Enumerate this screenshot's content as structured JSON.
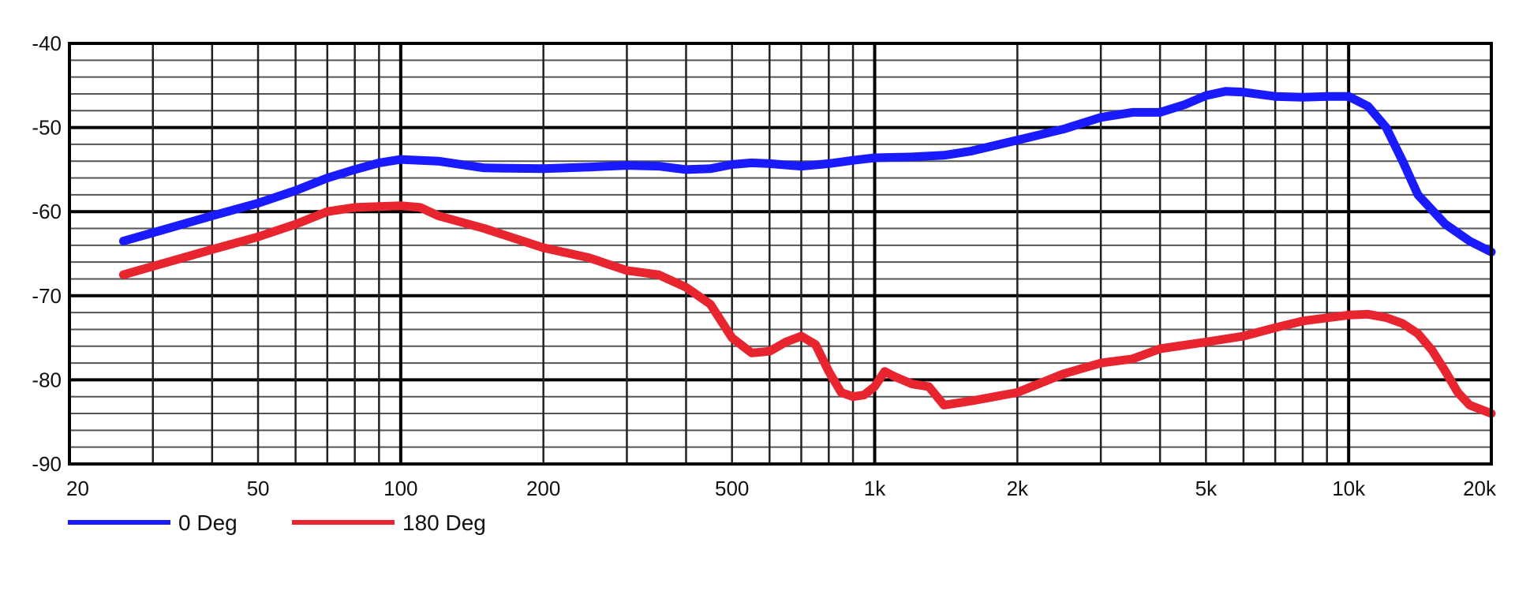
{
  "chart_data": {
    "type": "line",
    "title": "",
    "xlabel": "",
    "ylabel": "",
    "x_scale": "log",
    "xlim": [
      20,
      20000
    ],
    "ylim": [
      -90,
      -40
    ],
    "grid": true,
    "legend_position": "bottom-left",
    "x_tick_labels": [
      {
        "value": 20,
        "label": "20"
      },
      {
        "value": 50,
        "label": "50"
      },
      {
        "value": 100,
        "label": "100"
      },
      {
        "value": 200,
        "label": "200"
      },
      {
        "value": 500,
        "label": "500"
      },
      {
        "value": 1000,
        "label": "1k"
      },
      {
        "value": 2000,
        "label": "2k"
      },
      {
        "value": 5000,
        "label": "5k"
      },
      {
        "value": 10000,
        "label": "10k"
      },
      {
        "value": 20000,
        "label": "20k"
      }
    ],
    "y_tick_labels": [
      {
        "value": -40,
        "label": "-40"
      },
      {
        "value": -50,
        "label": "-50"
      },
      {
        "value": -60,
        "label": "-60"
      },
      {
        "value": -70,
        "label": "-70"
      },
      {
        "value": -80,
        "label": "-80"
      },
      {
        "value": -90,
        "label": "-90"
      }
    ],
    "series": [
      {
        "name": "0 Deg",
        "color": "#1a1aff",
        "points": [
          [
            26,
            -63.5
          ],
          [
            30,
            -62.5
          ],
          [
            40,
            -60.5
          ],
          [
            50,
            -59.0
          ],
          [
            60,
            -57.5
          ],
          [
            70,
            -56.0
          ],
          [
            80,
            -55.0
          ],
          [
            90,
            -54.2
          ],
          [
            100,
            -53.8
          ],
          [
            120,
            -54.0
          ],
          [
            150,
            -54.8
          ],
          [
            200,
            -54.9
          ],
          [
            250,
            -54.7
          ],
          [
            300,
            -54.5
          ],
          [
            350,
            -54.6
          ],
          [
            400,
            -55.0
          ],
          [
            450,
            -54.9
          ],
          [
            500,
            -54.4
          ],
          [
            550,
            -54.2
          ],
          [
            600,
            -54.3
          ],
          [
            700,
            -54.6
          ],
          [
            800,
            -54.3
          ],
          [
            900,
            -53.9
          ],
          [
            1000,
            -53.6
          ],
          [
            1200,
            -53.5
          ],
          [
            1400,
            -53.3
          ],
          [
            1600,
            -52.8
          ],
          [
            2000,
            -51.5
          ],
          [
            2500,
            -50.2
          ],
          [
            3000,
            -48.8
          ],
          [
            3500,
            -48.2
          ],
          [
            4000,
            -48.2
          ],
          [
            4500,
            -47.3
          ],
          [
            5000,
            -46.2
          ],
          [
            5500,
            -45.7
          ],
          [
            6000,
            -45.8
          ],
          [
            7000,
            -46.3
          ],
          [
            8000,
            -46.4
          ],
          [
            9000,
            -46.3
          ],
          [
            10000,
            -46.3
          ],
          [
            11000,
            -47.5
          ],
          [
            12000,
            -50.0
          ],
          [
            13000,
            -54.0
          ],
          [
            14000,
            -58.0
          ],
          [
            16000,
            -61.5
          ],
          [
            18000,
            -63.5
          ],
          [
            20000,
            -64.8
          ]
        ]
      },
      {
        "name": "180 Deg",
        "color": "#e8242f",
        "points": [
          [
            26,
            -67.5
          ],
          [
            30,
            -66.5
          ],
          [
            40,
            -64.5
          ],
          [
            50,
            -63.0
          ],
          [
            60,
            -61.5
          ],
          [
            70,
            -60.0
          ],
          [
            80,
            -59.5
          ],
          [
            90,
            -59.4
          ],
          [
            100,
            -59.3
          ],
          [
            110,
            -59.5
          ],
          [
            120,
            -60.5
          ],
          [
            150,
            -62.0
          ],
          [
            200,
            -64.3
          ],
          [
            250,
            -65.5
          ],
          [
            300,
            -67.0
          ],
          [
            350,
            -67.5
          ],
          [
            400,
            -69.0
          ],
          [
            450,
            -71.0
          ],
          [
            500,
            -75.0
          ],
          [
            550,
            -76.8
          ],
          [
            600,
            -76.6
          ],
          [
            650,
            -75.5
          ],
          [
            700,
            -74.8
          ],
          [
            750,
            -75.8
          ],
          [
            800,
            -79.0
          ],
          [
            850,
            -81.5
          ],
          [
            900,
            -82.0
          ],
          [
            950,
            -81.8
          ],
          [
            1000,
            -80.8
          ],
          [
            1050,
            -79.0
          ],
          [
            1100,
            -79.6
          ],
          [
            1200,
            -80.5
          ],
          [
            1300,
            -80.8
          ],
          [
            1400,
            -83.0
          ],
          [
            1600,
            -82.5
          ],
          [
            2000,
            -81.5
          ],
          [
            2500,
            -79.3
          ],
          [
            3000,
            -78.0
          ],
          [
            3500,
            -77.5
          ],
          [
            4000,
            -76.3
          ],
          [
            5000,
            -75.5
          ],
          [
            6000,
            -74.8
          ],
          [
            7000,
            -73.8
          ],
          [
            8000,
            -73.0
          ],
          [
            10000,
            -72.3
          ],
          [
            11000,
            -72.2
          ],
          [
            12000,
            -72.6
          ],
          [
            13000,
            -73.3
          ],
          [
            14000,
            -74.5
          ],
          [
            15000,
            -76.5
          ],
          [
            16000,
            -79.0
          ],
          [
            17000,
            -81.5
          ],
          [
            18000,
            -83.0
          ],
          [
            20000,
            -84.0
          ]
        ]
      }
    ]
  }
}
